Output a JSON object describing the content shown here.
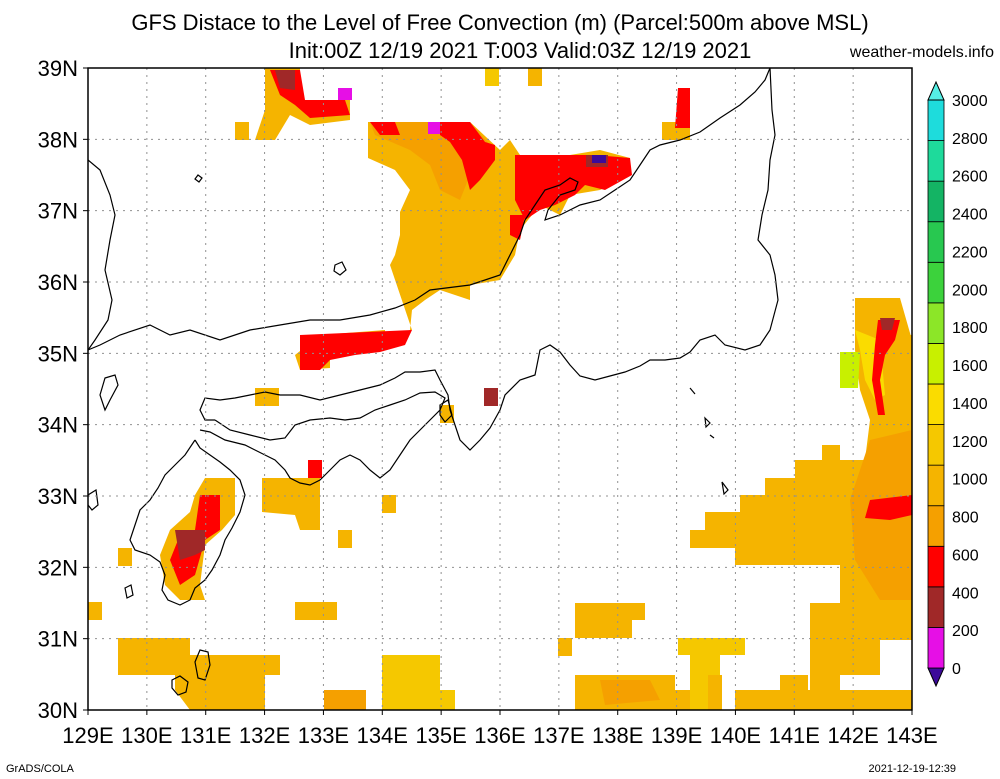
{
  "title": {
    "line1": "GFS Distace to the Level of Free Convection (m) (Parcel:500m above MSL)",
    "line2": "Init:00Z 12/19 2021 T:003 Valid:03Z 12/19 2021"
  },
  "source": "weather-models.info",
  "footer": {
    "left": "GrADS/COLA",
    "right": "2021-12-19-12:39"
  },
  "map": {
    "lon_labels": [
      "129E",
      "130E",
      "131E",
      "132E",
      "133E",
      "134E",
      "135E",
      "136E",
      "137E",
      "138E",
      "139E",
      "140E",
      "141E",
      "142E",
      "143E"
    ],
    "lat_labels": [
      "39N",
      "38N",
      "37N",
      "36N",
      "35N",
      "34N",
      "33N",
      "32N",
      "31N",
      "30N"
    ],
    "lon_range": [
      129,
      143
    ],
    "lat_range": [
      30,
      39
    ],
    "grid": true,
    "land_color": "#ffffff",
    "coast_color": "#000000"
  },
  "colorbar": {
    "labels": [
      "0",
      "200",
      "400",
      "600",
      "800",
      "1000",
      "1200",
      "1400",
      "1600",
      "1800",
      "2000",
      "2200",
      "2400",
      "2600",
      "2800",
      "3000"
    ],
    "colors": [
      "#3c0a9a",
      "#e60fe6",
      "#a02828",
      "#ff0000",
      "#f5a000",
      "#f5b400",
      "#f5c800",
      "#fadc00",
      "#c8f000",
      "#8ce628",
      "#3cd23c",
      "#28c850",
      "#14b464",
      "#1eda9b",
      "#1edcdc",
      "#55f0e6"
    ]
  }
}
